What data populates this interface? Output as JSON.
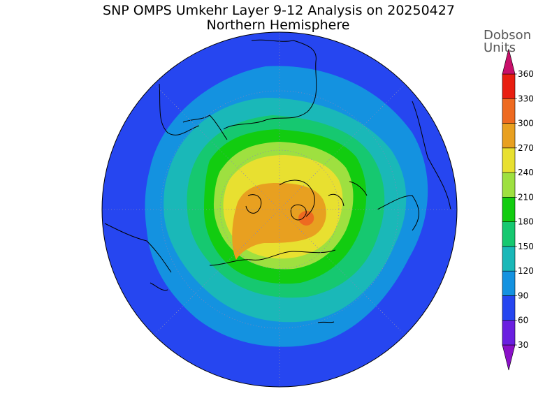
{
  "title": "SNP OMPS Umkehr Layer 9-12 Analysis on 20250427",
  "subtitle": "Northern Hemisphere",
  "legend": {
    "title_line1": "Dobson",
    "title_line2": "Units",
    "levels": [
      {
        "label": "30",
        "color": "#a020d8"
      },
      {
        "label": "60",
        "color": "#6a1fe0"
      },
      {
        "label": "90",
        "color": "#2646f0"
      },
      {
        "label": "120",
        "color": "#1492e0"
      },
      {
        "label": "150",
        "color": "#1ab8b8"
      },
      {
        "label": "180",
        "color": "#16c870"
      },
      {
        "label": "210",
        "color": "#12cc10"
      },
      {
        "label": "240",
        "color": "#9ee040"
      },
      {
        "label": "270",
        "color": "#e8e030"
      },
      {
        "label": "300",
        "color": "#e8a020"
      },
      {
        "label": "330",
        "color": "#ee6a20"
      },
      {
        "label": "360",
        "color": "#e81e10"
      }
    ],
    "below_color": "#8a10c8",
    "above_color": "#c8106a"
  },
  "map": {
    "projection": "north-polar-stereographic",
    "outer_color": "#2646f0",
    "land_outline": "#000000",
    "graticule": "dotted"
  }
}
